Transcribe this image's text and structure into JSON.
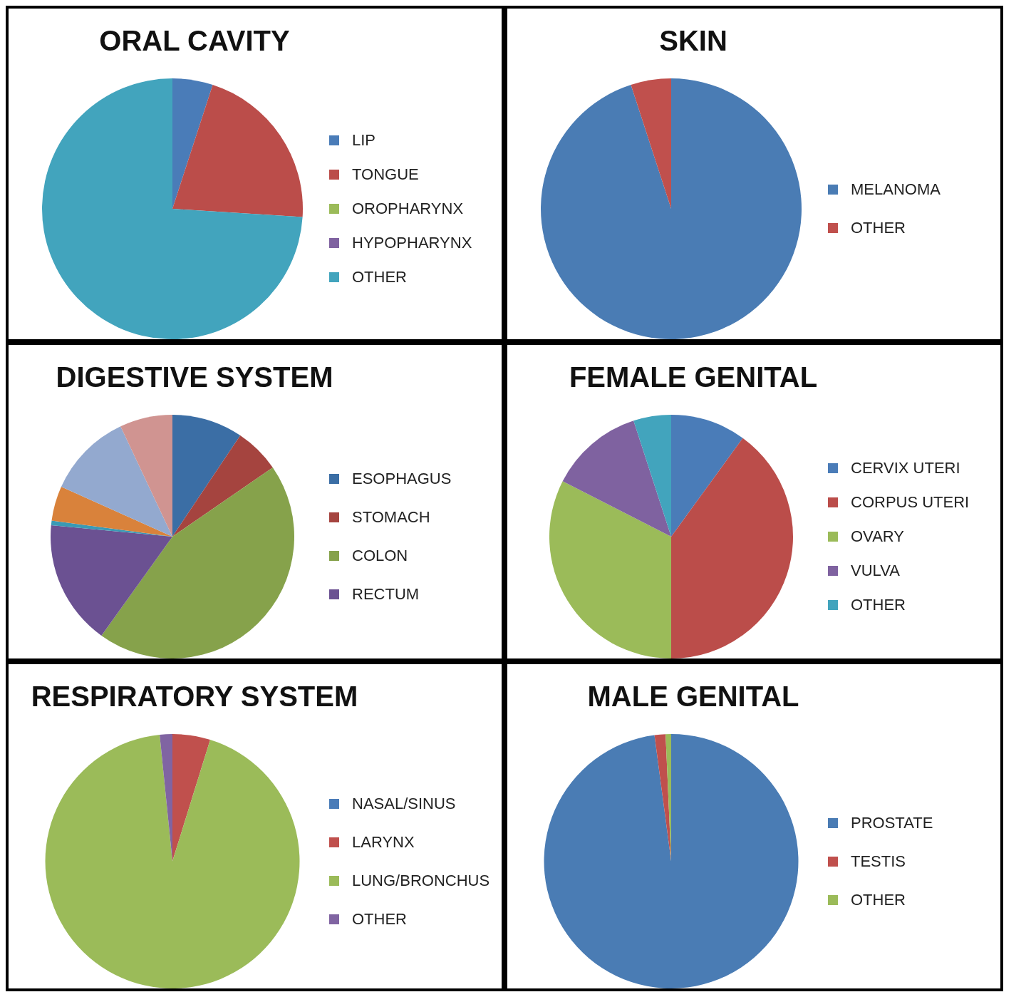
{
  "chart_data": [
    {
      "type": "pie",
      "title": "ORAL CAVITY",
      "categories": [
        "LIP",
        "TONGUE",
        "OROPHARYNX",
        "HYPOPHARYNX",
        "OTHER"
      ],
      "values": [
        5,
        21,
        0,
        0,
        74
      ],
      "colors": [
        "#4a7cb8",
        "#bb4d4a",
        "#9bbb59",
        "#7f62a0",
        "#42a4bd"
      ],
      "legend": "right"
    },
    {
      "type": "pie",
      "title": "SKIN",
      "categories": [
        "MELANOMA",
        "OTHER"
      ],
      "values": [
        95,
        5
      ],
      "colors": [
        "#4a7cb4",
        "#c0504d"
      ],
      "legend": "right"
    },
    {
      "type": "pie",
      "title": "DIGESTIVE SYSTEM",
      "categories": [
        "ESOPHAGUS",
        "STOMACH",
        "COLON",
        "RECTUM",
        null,
        null,
        null,
        null
      ],
      "values": [
        9.4,
        6,
        44.5,
        16.6,
        0.6,
        4.6,
        11.3,
        7
      ],
      "colors": [
        "#3b6ea5",
        "#a5443f",
        "#86a24b",
        "#6b5192",
        "#3a9ab5",
        "#d9823b",
        "#93a9cf",
        "#d09491"
      ],
      "legend": "right"
    },
    {
      "type": "pie",
      "title": "FEMALE GENITAL",
      "categories": [
        "CERVIX UTERI",
        "CORPUS UTERI",
        "OVARY",
        "VULVA",
        "OTHER"
      ],
      "values": [
        10,
        40,
        32.5,
        12.5,
        5
      ],
      "colors": [
        "#4a7cb8",
        "#bb4d4a",
        "#9bbb59",
        "#7f62a0",
        "#42a4bd"
      ],
      "legend": "right"
    },
    {
      "type": "pie",
      "title": "RESPIRATORY SYSTEM",
      "categories": [
        "NASAL/SINUS",
        "LARYNX",
        "LUNG/BRONCHUS",
        "OTHER"
      ],
      "values": [
        0,
        4.8,
        93.6,
        1.6
      ],
      "colors": [
        "#4a7cb8",
        "#c0504d",
        "#9bbb59",
        "#8064a2"
      ],
      "legend": "right"
    },
    {
      "type": "pie",
      "title": "MALE GENITAL",
      "categories": [
        "PROSTATE",
        "TESTIS",
        "OTHER"
      ],
      "values": [
        97.9,
        1.4,
        0.7
      ],
      "colors": [
        "#4a7cb4",
        "#c0504d",
        "#9bbb59"
      ],
      "legend": "right"
    }
  ]
}
